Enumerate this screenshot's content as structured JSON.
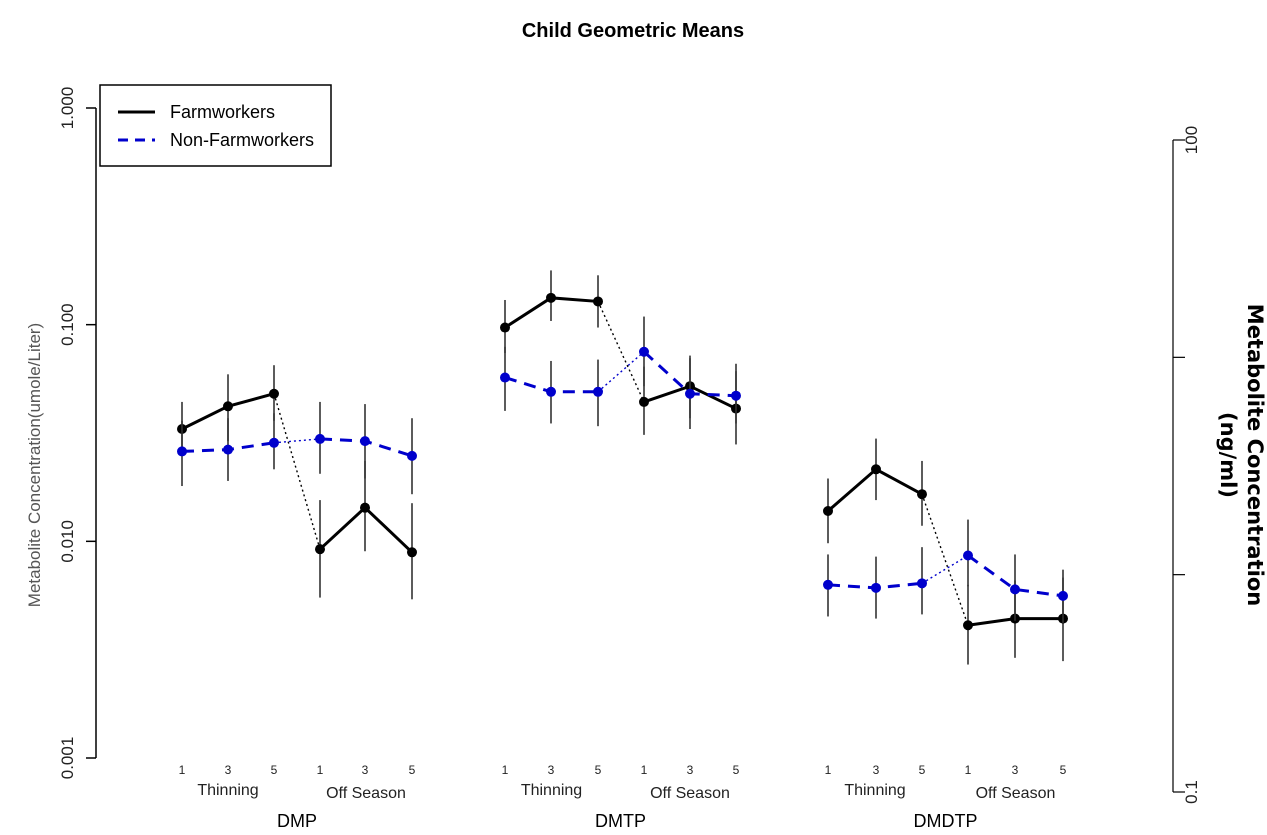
{
  "chart_data": {
    "type": "line",
    "title": "Child Geometric Means",
    "ylabel": "Metabolite Concentration(umole/Liter)",
    "ylabel_right": "Metabolite Concentration\n(ng/ml)",
    "y_scale": "log",
    "ylim": [
      0.001,
      1.0
    ],
    "y_ticks": [
      "0.001",
      "0.010",
      "0.100",
      "1.000"
    ],
    "y_right_ticks": [
      "0.1",
      "",
      "",
      "100"
    ],
    "x_tick_labels": [
      "1",
      "3",
      "5",
      "1",
      "3",
      "5"
    ],
    "periods": [
      "Thinning",
      "Off Season"
    ],
    "groups": [
      "DMP",
      "DMTP",
      "DMDTP"
    ],
    "legend": {
      "position": "top-left",
      "entries": [
        "Farmworkers",
        "Non-Farmworkers"
      ]
    },
    "series": [
      {
        "name": "Farmworkers",
        "color": "#000000",
        "line_style": "solid",
        "groups": [
          {
            "values": [
              0.033,
              0.042,
              0.048,
              0.0092,
              0.0143,
              0.0089
            ],
            "lower": [
              0.025,
              0.029,
              0.036,
              0.0055,
              0.009,
              0.0054
            ],
            "upper": [
              0.044,
              0.059,
              0.065,
              0.0155,
              0.0235,
              0.015
            ]
          },
          {
            "values": [
              0.097,
              0.133,
              0.128,
              0.044,
              0.052,
              0.041
            ],
            "lower": [
              0.074,
              0.104,
              0.097,
              0.031,
              0.037,
              0.028
            ],
            "upper": [
              0.13,
              0.178,
              0.169,
              0.064,
              0.072,
              0.061
            ]
          },
          {
            "values": [
              0.0138,
              0.0215,
              0.0165,
              0.0041,
              0.0044,
              0.0044
            ],
            "lower": [
              0.0098,
              0.0155,
              0.0118,
              0.0027,
              0.0029,
              0.0028
            ],
            "upper": [
              0.0195,
              0.0298,
              0.0235,
              0.0063,
              0.0066,
              0.0068
            ]
          }
        ]
      },
      {
        "name": "Non-Farmworkers",
        "color": "#0000cc",
        "line_style": "dashed",
        "groups": [
          {
            "values": [
              0.026,
              0.0265,
              0.0285,
              0.0297,
              0.029,
              0.0248
            ],
            "lower": [
              0.018,
              0.019,
              0.0215,
              0.0205,
              0.0195,
              0.0165
            ],
            "upper": [
              0.036,
              0.037,
              0.039,
              0.044,
              0.043,
              0.037
            ]
          },
          {
            "values": [
              0.057,
              0.049,
              0.049,
              0.075,
              0.048,
              0.047
            ],
            "lower": [
              0.04,
              0.035,
              0.034,
              0.052,
              0.033,
              0.035
            ],
            "upper": [
              0.079,
              0.068,
              0.069,
              0.109,
              0.07,
              0.066
            ]
          },
          {
            "values": [
              0.0063,
              0.0061,
              0.0064,
              0.0086,
              0.006,
              0.0056
            ],
            "lower": [
              0.0045,
              0.0044,
              0.0046,
              0.0062,
              0.0043,
              0.0042
            ],
            "upper": [
              0.0087,
              0.0085,
              0.0094,
              0.0126,
              0.0087,
              0.0074
            ]
          }
        ]
      }
    ]
  }
}
